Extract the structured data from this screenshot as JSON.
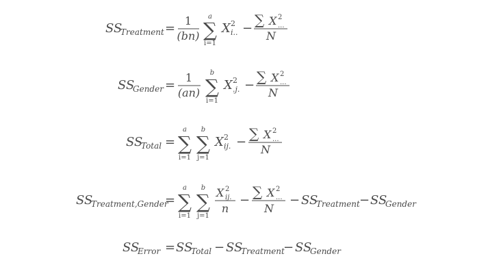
{
  "equations": [
    {
      "lhs": {
        "base": "SS",
        "subscript": "Treatment"
      },
      "fraction1": {
        "numerator": "1",
        "denominator": "(bn)"
      },
      "sum": {
        "upper": "a",
        "lower": "i=1"
      },
      "term": {
        "base": "X",
        "sup": "2",
        "sub": "i.."
      },
      "fraction2": {
        "numerator_base": "X",
        "numerator_sup": "2",
        "numerator_sub": "...",
        "denominator": "N"
      }
    },
    {
      "lhs": {
        "base": "SS",
        "subscript": "Gender"
      },
      "fraction1": {
        "numerator": "1",
        "denominator": "(an)"
      },
      "sum": {
        "upper": "b",
        "lower": "i=1"
      },
      "term": {
        "base": "X",
        "sup": "2",
        "sub": ".j."
      },
      "fraction2": {
        "numerator_base": "X",
        "numerator_sup": "2",
        "numerator_sub": "...",
        "denominator": "N"
      }
    },
    {
      "lhs": {
        "base": "SS",
        "subscript": "Total"
      },
      "sum1": {
        "upper": "a",
        "lower": "i=1"
      },
      "sum2": {
        "upper": "b",
        "lower": "j=1"
      },
      "term": {
        "base": "X",
        "sup": "2",
        "sub": "ij."
      },
      "fraction2": {
        "numerator_base": "X",
        "numerator_sup": "2",
        "numerator_sub": "...",
        "denominator": "N"
      }
    },
    {
      "lhs": {
        "base": "SS",
        "subscript": "Treatment,Gender"
      },
      "sum1": {
        "upper": "a",
        "lower": "i=1"
      },
      "sum2": {
        "upper": "b",
        "lower": "j=1"
      },
      "fraction1": {
        "numerator_base": "X",
        "numerator_sup": "2",
        "numerator_sub": "ij.",
        "denominator": "n"
      },
      "fraction2": {
        "numerator_base": "X",
        "numerator_sup": "2",
        "numerator_sub": "...",
        "denominator": "N"
      },
      "minus_terms": [
        {
          "base": "SS",
          "subscript": "Treatment"
        },
        {
          "base": "SS",
          "subscript": "Gender"
        }
      ]
    },
    {
      "lhs": {
        "base": "SS",
        "subscript": "Error"
      },
      "terms": [
        {
          "base": "SS",
          "subscript": "Total"
        },
        {
          "base": "SS",
          "subscript": "Treatment"
        },
        {
          "base": "SS",
          "subscript": "Gender"
        }
      ]
    }
  ],
  "symbols": {
    "equals": "=",
    "minus": "−",
    "sigma": "∑"
  }
}
